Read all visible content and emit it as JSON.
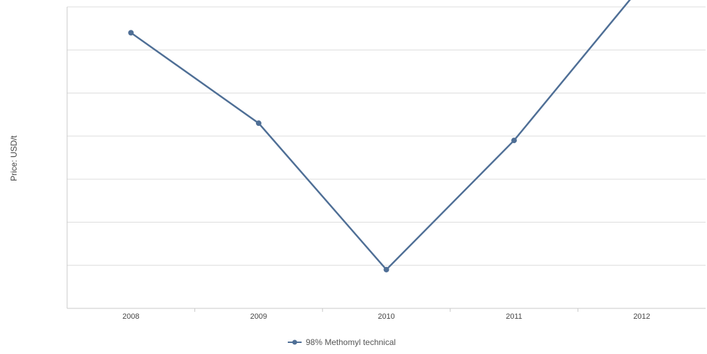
{
  "chart_data": {
    "type": "line",
    "title": "",
    "xlabel": "",
    "ylabel": "Price: USD/t",
    "categories": [
      "2008",
      "2009",
      "2010",
      "2011",
      "2012"
    ],
    "series": [
      {
        "name": "98% Methomyl technical",
        "values": [
          6.4,
          4.3,
          0.9,
          3.9,
          7.5
        ]
      }
    ],
    "ylim": [
      0,
      7
    ],
    "grid": true,
    "legend_position": "bottom-center",
    "line_color": "#4f6f96"
  }
}
